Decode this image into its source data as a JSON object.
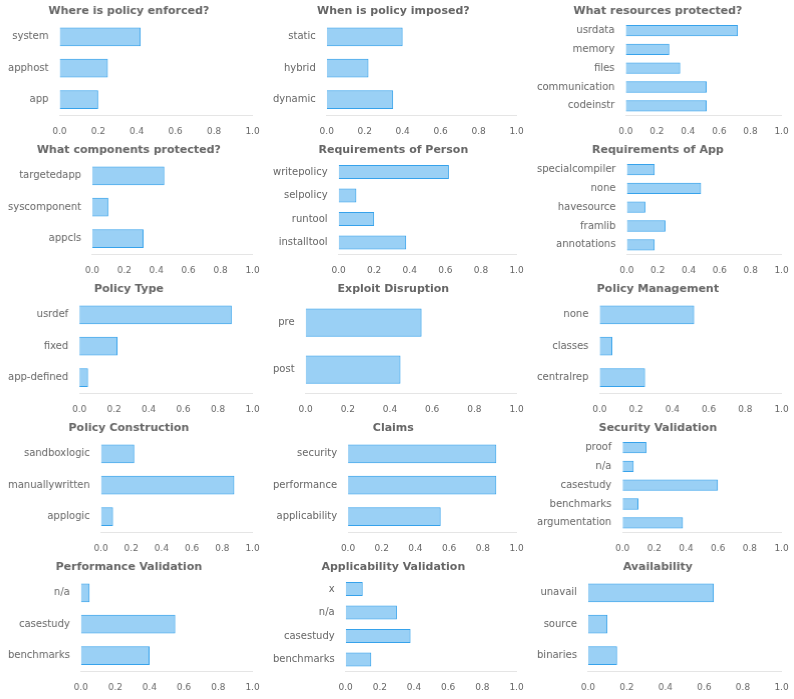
{
  "chart_data": [
    {
      "type": "bar",
      "orientation": "horizontal",
      "title": "Where is policy enforced?",
      "categories": [
        "system",
        "apphost",
        "app"
      ],
      "values": [
        0.42,
        0.25,
        0.2
      ],
      "xlim": [
        0,
        1.0
      ],
      "xticks": [
        {
          "value": 0.0,
          "label": "0.0"
        },
        0.2,
        0.4,
        0.6,
        0.8,
        {
          "value": 1.0,
          "label": "1.0"
        }
      ],
      "grid": false
    },
    {
      "type": "bar",
      "orientation": "horizontal",
      "title": "When is policy imposed?",
      "categories": [
        "static",
        "hybrid",
        "dynamic"
      ],
      "values": [
        0.4,
        0.22,
        0.35
      ],
      "xlim": [
        0,
        1.0
      ],
      "xticks": [
        {
          "value": 0.0,
          "label": "0.0"
        },
        0.2,
        0.4,
        0.6,
        0.8,
        {
          "value": 1.0,
          "label": "1.0"
        }
      ],
      "grid": false
    },
    {
      "type": "bar",
      "orientation": "horizontal",
      "title": "What resources protected?",
      "categories": [
        "usrdata",
        "memory",
        "files",
        "communication",
        "codeinstr"
      ],
      "values": [
        0.72,
        0.28,
        0.35,
        0.52,
        0.52
      ],
      "xlim": [
        0,
        1.0
      ],
      "xticks": [
        {
          "value": 0.0,
          "label": "0.0"
        },
        0.2,
        0.4,
        0.6,
        0.8,
        {
          "value": 1.0,
          "label": "1.0"
        }
      ],
      "grid": false
    },
    {
      "type": "bar",
      "orientation": "horizontal",
      "title": "What components protected?",
      "categories": [
        "targetedapp",
        "syscomponent",
        "appcls"
      ],
      "values": [
        0.45,
        0.1,
        0.32
      ],
      "xlim": [
        0,
        1.0
      ],
      "xticks": [
        {
          "value": 0.0,
          "label": "0.0"
        },
        0.2,
        0.4,
        0.6,
        0.8,
        {
          "value": 1.0,
          "label": "1.0"
        }
      ],
      "grid": false
    },
    {
      "type": "bar",
      "orientation": "horizontal",
      "title": "Requirements of Person",
      "categories": [
        "writepolicy",
        "selpolicy",
        "runtool",
        "installtool"
      ],
      "values": [
        0.62,
        0.1,
        0.2,
        0.38
      ],
      "xlim": [
        0,
        1.0
      ],
      "xticks": [
        {
          "value": 0.0,
          "label": "0.0"
        },
        0.2,
        0.4,
        0.6,
        0.8,
        {
          "value": 1.0,
          "label": "1.0"
        }
      ],
      "grid": false
    },
    {
      "type": "bar",
      "orientation": "horizontal",
      "title": "Requirements of App",
      "categories": [
        "specialcompiler",
        "none",
        "havesource",
        "framlib",
        "annotations"
      ],
      "values": [
        0.18,
        0.48,
        0.12,
        0.25,
        0.18
      ],
      "xlim": [
        0,
        1.0
      ],
      "xticks": [
        {
          "value": 0.0,
          "label": "0.0"
        },
        0.2,
        0.4,
        0.6,
        0.8,
        {
          "value": 1.0,
          "label": "1.0"
        }
      ],
      "grid": false
    },
    {
      "type": "bar",
      "orientation": "horizontal",
      "title": "Policy Type",
      "categories": [
        "usrdef",
        "fixed",
        "app-defined"
      ],
      "values": [
        0.88,
        0.22,
        0.05
      ],
      "xlim": [
        0,
        1.0
      ],
      "xticks": [
        {
          "value": 0.0,
          "label": "0.0"
        },
        0.2,
        0.4,
        0.6,
        0.8,
        {
          "value": 1.0,
          "label": "1.0"
        }
      ],
      "grid": false
    },
    {
      "type": "bar",
      "orientation": "horizontal",
      "title": "Exploit Disruption",
      "categories": [
        "pre",
        "post"
      ],
      "values": [
        0.55,
        0.45
      ],
      "xlim": [
        0,
        1.0
      ],
      "xticks": [
        {
          "value": 0.0,
          "label": "0.0"
        },
        0.2,
        0.4,
        0.6,
        0.8,
        {
          "value": 1.0,
          "label": "1.0"
        }
      ],
      "grid": false
    },
    {
      "type": "bar",
      "orientation": "horizontal",
      "title": "Policy Management",
      "categories": [
        "none",
        "classes",
        "centralrep"
      ],
      "values": [
        0.52,
        0.07,
        0.25
      ],
      "xlim": [
        0,
        1.0
      ],
      "xticks": [
        {
          "value": 0.0,
          "label": "0.0"
        },
        0.2,
        0.4,
        0.6,
        0.8,
        {
          "value": 1.0,
          "label": "1.0"
        }
      ],
      "grid": false
    },
    {
      "type": "bar",
      "orientation": "horizontal",
      "title": "Policy Construction",
      "categories": [
        "sandboxlogic",
        "manuallywritten",
        "applogic"
      ],
      "values": [
        0.22,
        0.88,
        0.08
      ],
      "xlim": [
        0,
        1.0
      ],
      "xticks": [
        {
          "value": 0.0,
          "label": "0.0"
        },
        0.2,
        0.4,
        0.6,
        0.8,
        {
          "value": 1.0,
          "label": "1.0"
        }
      ],
      "grid": false
    },
    {
      "type": "bar",
      "orientation": "horizontal",
      "title": "Claims",
      "categories": [
        "security",
        "performance",
        "applicability"
      ],
      "values": [
        0.88,
        0.88,
        0.55
      ],
      "xlim": [
        0,
        1.0
      ],
      "xticks": [
        {
          "value": 0.0,
          "label": "0.0"
        },
        0.2,
        0.4,
        0.6,
        0.8,
        {
          "value": 1.0,
          "label": "1.0"
        }
      ],
      "grid": false
    },
    {
      "type": "bar",
      "orientation": "horizontal",
      "title": "Security Validation",
      "categories": [
        "proof",
        "n/a",
        "casestudy",
        "benchmarks",
        "argumentation"
      ],
      "values": [
        0.15,
        0.07,
        0.6,
        0.1,
        0.38
      ],
      "xlim": [
        0,
        1.0
      ],
      "xticks": [
        {
          "value": 0.0,
          "label": "0.0"
        },
        0.2,
        0.4,
        0.6,
        0.8,
        {
          "value": 1.0,
          "label": "1.0"
        }
      ],
      "grid": false
    },
    {
      "type": "bar",
      "orientation": "horizontal",
      "title": "Performance Validation",
      "categories": [
        "n/a",
        "casestudy",
        "benchmarks"
      ],
      "values": [
        0.05,
        0.55,
        0.4
      ],
      "xlim": [
        0,
        1.0
      ],
      "xticks": [
        {
          "value": 0.0,
          "label": "0.0"
        },
        0.2,
        0.4,
        0.6,
        0.8,
        {
          "value": 1.0,
          "label": "1.0"
        }
      ],
      "grid": false
    },
    {
      "type": "bar",
      "orientation": "horizontal",
      "title": "Applicability Validation",
      "categories": [
        "x",
        "n/a",
        "casestudy",
        "benchmarks"
      ],
      "values": [
        0.1,
        0.3,
        0.38,
        0.15
      ],
      "xlim": [
        0,
        1.0
      ],
      "xticks": [
        {
          "value": 0.0,
          "label": "0.0"
        },
        0.2,
        0.4,
        0.6,
        0.8,
        {
          "value": 1.0,
          "label": "1.0"
        }
      ],
      "grid": false
    },
    {
      "type": "bar",
      "orientation": "horizontal",
      "title": "Availability",
      "categories": [
        "unavail",
        "source",
        "binaries"
      ],
      "values": [
        0.65,
        0.1,
        0.15
      ],
      "xlim": [
        0,
        1.0
      ],
      "xticks": [
        {
          "value": 0.0,
          "label": "0.0"
        },
        0.2,
        0.4,
        0.6,
        0.8,
        {
          "value": 1.0,
          "label": "1.0"
        }
      ],
      "grid": false
    }
  ]
}
